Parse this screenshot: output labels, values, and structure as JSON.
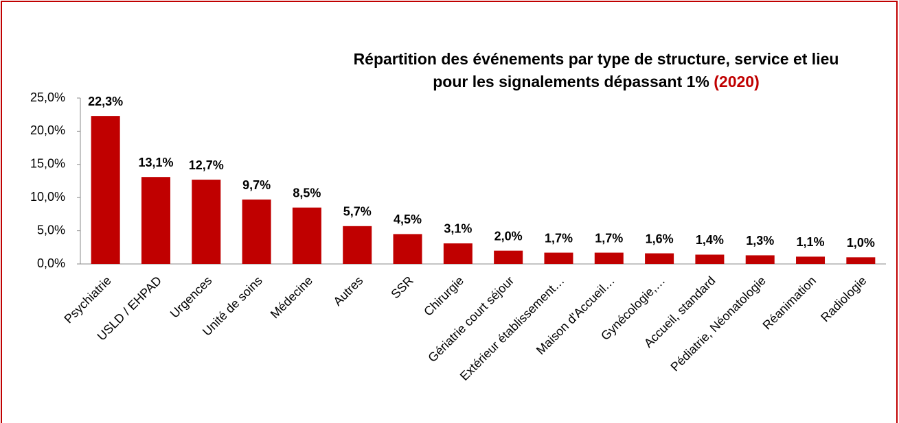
{
  "chart_data": {
    "type": "bar",
    "title": [
      "Répartition des événements par type de structure, service et lieu",
      "pour les signalements dépassant 1%"
    ],
    "title_highlight": "(2020)",
    "categories": [
      "Psychiatrie",
      "USLD / EHPAD",
      "Urgences",
      "Unité de soins",
      "Médecine",
      "Autres",
      "SSR",
      "Chirurgie",
      "Gériatrie court séjour",
      "Extérieur établissement…",
      "Maison d'Accueil…",
      "Gynécologie,…",
      "Accueil, standard",
      "Pédiatrie, Néonatologie",
      "Réanimation",
      "Radiologie"
    ],
    "values": [
      22.3,
      13.1,
      12.7,
      9.7,
      8.5,
      5.7,
      4.5,
      3.1,
      2.0,
      1.7,
      1.7,
      1.6,
      1.4,
      1.3,
      1.1,
      1.0
    ],
    "value_labels": [
      "22,3%",
      "13,1%",
      "12,7%",
      "9,7%",
      "8,5%",
      "5,7%",
      "4,5%",
      "3,1%",
      "2,0%",
      "1,7%",
      "1,7%",
      "1,6%",
      "1,4%",
      "1,3%",
      "1,1%",
      "1,0%"
    ],
    "color": "#c00000",
    "ylim": [
      0,
      25
    ],
    "yticks": [
      {
        "value": 0,
        "label": "0,0%"
      },
      {
        "value": 5,
        "label": "5,0%"
      },
      {
        "value": 10,
        "label": "10,0%"
      },
      {
        "value": 15,
        "label": "15,0%"
      },
      {
        "value": 20,
        "label": "20,0%"
      },
      {
        "value": 25,
        "label": "25,0%"
      }
    ],
    "grid": false
  }
}
